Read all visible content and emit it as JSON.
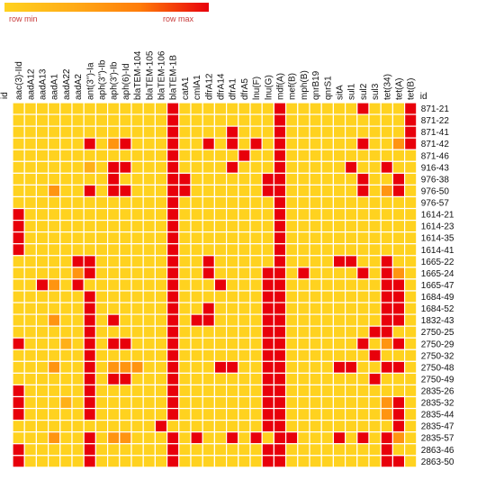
{
  "legend": {
    "min_label": "row min",
    "max_label": "row max",
    "colors": [
      "#ffd21f",
      "#ffac17",
      "#ff7b0a",
      "#e8000b"
    ]
  },
  "chart_data": {
    "type": "heatmap",
    "row_header": "id",
    "col_header_right": "id",
    "columns": [
      "aac(3)-IId",
      "aadA12",
      "aadA13",
      "aadA1",
      "aadA22",
      "aadA2",
      "ant(3'')-Ia",
      "aph(3'')-Ib",
      "aph(3')-Ib",
      "aph(6)-Id",
      "blaTEM-104",
      "blaTEM-105",
      "blaTEM-106",
      "blaTEM-1B",
      "catA1",
      "cmlA1",
      "dfrA12",
      "dfrA14",
      "dfrA1",
      "dfrA5",
      "lnu(F)",
      "lnu(G)",
      "mdf(A)",
      "mef(B)",
      "mph(B)",
      "qnrB19",
      "qnrS1",
      "sitA",
      "sul1",
      "sul2",
      "sul3",
      "tet(34)",
      "tet(A)",
      "tet(B)"
    ],
    "rows": [
      {
        "id": "871-21",
        "values": [
          0,
          0,
          0,
          0,
          0,
          0,
          0,
          0,
          0,
          0,
          0,
          0,
          0,
          1,
          0,
          0,
          0,
          0,
          0,
          0,
          0,
          0,
          1,
          0,
          0,
          0,
          0,
          0,
          0,
          1,
          0,
          0,
          0,
          1
        ]
      },
      {
        "id": "871-22",
        "values": [
          0,
          0,
          0,
          0,
          0,
          0,
          0,
          0,
          0,
          0,
          0,
          0,
          0,
          1,
          0,
          0,
          0,
          0,
          0,
          0,
          0,
          0,
          1,
          0,
          0,
          0,
          0,
          0,
          0,
          0,
          0,
          0,
          0,
          1
        ]
      },
      {
        "id": "871-41",
        "values": [
          0,
          0,
          0,
          0,
          0,
          0,
          0,
          0,
          0,
          0,
          0,
          0,
          0,
          1,
          0,
          0,
          0,
          0,
          1,
          0,
          0,
          0,
          1,
          0,
          0,
          0,
          0,
          0,
          0,
          0,
          0,
          0,
          0,
          1
        ]
      },
      {
        "id": "871-42",
        "values": [
          0,
          0,
          0,
          0,
          0,
          0,
          1,
          0,
          0.5,
          1,
          0,
          0,
          0,
          1,
          0,
          0,
          1,
          0,
          1,
          0,
          1,
          0,
          1,
          0,
          0,
          0,
          0,
          0,
          0,
          1,
          0,
          0,
          0.5,
          1
        ]
      },
      {
        "id": "871-46",
        "values": [
          0,
          0,
          0,
          0,
          0,
          0,
          0,
          0,
          0,
          0,
          0,
          0,
          0,
          1,
          0,
          0,
          0,
          0,
          0,
          1,
          0,
          0,
          1,
          0,
          0,
          0,
          0,
          0,
          0,
          0,
          0,
          0,
          0,
          0
        ]
      },
      {
        "id": "916-43",
        "values": [
          0,
          0,
          0,
          0,
          0,
          0,
          0.3,
          0,
          1,
          1,
          0,
          0,
          0,
          1,
          0,
          0,
          0,
          0,
          1,
          0,
          0,
          0,
          1,
          0,
          0,
          0,
          0,
          0,
          1,
          0,
          0,
          1,
          0,
          0
        ]
      },
      {
        "id": "976-38",
        "values": [
          0,
          0,
          0,
          0,
          0,
          0,
          0,
          0,
          1,
          0,
          0,
          0,
          0,
          1,
          1,
          0,
          0,
          0,
          0,
          0,
          0,
          1,
          1,
          0,
          0,
          0,
          0,
          0,
          0,
          1,
          0,
          0,
          1,
          0
        ]
      },
      {
        "id": "976-50",
        "values": [
          0,
          0,
          0,
          0.5,
          0,
          0,
          1,
          0,
          1,
          1,
          0,
          0,
          0,
          1,
          1,
          0,
          0,
          0,
          0,
          0,
          0,
          1,
          1,
          0,
          0,
          0,
          0,
          0,
          0,
          1,
          0,
          0.5,
          1,
          0
        ]
      },
      {
        "id": "976-57",
        "values": [
          0,
          0,
          0,
          0,
          0,
          0,
          0,
          0,
          0,
          0,
          0,
          0,
          0,
          1,
          0,
          0,
          0,
          0,
          0,
          0,
          0,
          0,
          1,
          0,
          0,
          0,
          0,
          0,
          0,
          0,
          0,
          0,
          0,
          0
        ]
      },
      {
        "id": "1614-21",
        "values": [
          1,
          0,
          0,
          0,
          0,
          0,
          0,
          0,
          0,
          0,
          0,
          0,
          0,
          1,
          0,
          0,
          0,
          0,
          0,
          0,
          0,
          0,
          1,
          0,
          0,
          0,
          0,
          0,
          0,
          0,
          0,
          0,
          0,
          0
        ]
      },
      {
        "id": "1614-23",
        "values": [
          1,
          0,
          0,
          0,
          0,
          0,
          0,
          0,
          0,
          0,
          0,
          0,
          0,
          1,
          0,
          0,
          0,
          0,
          0,
          0,
          0,
          0,
          1,
          0,
          0,
          0,
          0,
          0,
          0,
          0,
          0,
          0,
          0,
          0
        ]
      },
      {
        "id": "1614-35",
        "values": [
          1,
          0,
          0,
          0,
          0,
          0,
          0,
          0,
          0,
          0,
          0,
          0,
          0,
          1,
          0,
          0,
          0,
          0,
          0,
          0,
          0,
          0,
          1,
          0,
          0,
          0,
          0,
          0,
          0,
          0,
          0,
          0,
          0,
          0
        ]
      },
      {
        "id": "1614-41",
        "values": [
          1,
          0,
          0,
          0,
          0,
          0,
          0,
          0,
          0,
          0,
          0,
          0,
          0,
          1,
          0,
          0,
          0,
          0,
          0,
          0,
          0,
          0,
          1,
          0,
          0,
          0,
          0,
          0,
          0,
          0,
          0,
          0,
          0,
          0
        ]
      },
      {
        "id": "1665-22",
        "values": [
          0,
          0,
          0,
          0,
          0,
          1,
          1,
          0,
          0,
          0,
          0,
          0,
          0,
          1,
          0,
          0,
          1,
          0,
          0,
          0,
          0,
          0,
          1,
          0,
          0,
          0,
          0,
          1,
          1,
          0,
          0,
          1,
          0,
          0
        ]
      },
      {
        "id": "1665-24",
        "values": [
          0,
          0,
          0,
          0,
          0,
          0.5,
          1,
          0,
          0,
          0,
          0,
          0,
          0,
          1,
          0,
          0,
          1,
          0,
          0,
          0,
          0,
          1,
          1,
          0,
          1,
          0,
          0,
          0,
          0,
          1,
          0,
          1,
          0.5,
          0
        ]
      },
      {
        "id": "1665-47",
        "values": [
          0,
          0,
          1,
          0.5,
          0,
          1,
          0,
          0,
          0,
          0,
          0,
          0,
          0,
          1,
          0,
          0,
          0,
          1,
          0,
          0,
          0,
          1,
          1,
          0,
          0,
          0,
          0,
          0,
          0,
          0,
          0,
          1,
          1,
          0
        ]
      },
      {
        "id": "1684-49",
        "values": [
          0,
          0,
          0,
          0,
          0,
          0,
          1,
          0,
          0,
          0,
          0,
          0,
          0,
          1,
          0,
          0,
          0,
          0,
          0,
          0,
          0,
          1,
          1,
          0,
          0,
          0,
          0,
          0,
          0,
          0,
          0,
          1,
          1,
          0
        ]
      },
      {
        "id": "1684-52",
        "values": [
          0,
          0,
          0,
          0,
          0,
          0,
          1,
          0,
          0,
          0,
          0,
          0,
          0,
          1,
          0,
          0,
          1,
          0,
          0,
          0,
          0,
          1,
          1,
          0,
          0,
          0,
          0,
          0,
          0,
          0,
          0,
          1,
          1,
          0
        ]
      },
      {
        "id": "1832-43",
        "values": [
          0,
          0,
          0,
          0.5,
          0,
          0,
          1,
          0,
          1,
          0,
          0,
          0,
          0,
          1,
          0,
          1,
          1,
          0,
          0,
          0,
          0,
          1,
          1,
          0,
          0,
          0,
          0,
          0,
          0,
          0,
          0,
          1,
          1,
          0
        ]
      },
      {
        "id": "2750-25",
        "values": [
          0,
          0,
          0,
          0,
          0,
          0,
          1,
          0,
          0,
          0,
          0,
          0,
          0,
          1,
          0,
          0,
          0,
          0,
          0,
          0,
          0,
          1,
          1,
          0,
          0,
          0,
          0,
          0,
          0,
          0,
          1,
          1,
          0,
          0
        ]
      },
      {
        "id": "2750-29",
        "values": [
          1,
          0,
          0,
          0,
          0.3,
          0,
          1,
          0,
          1,
          1,
          0,
          0,
          0,
          1,
          0,
          0,
          0,
          0,
          0,
          0,
          0,
          1,
          1,
          0,
          0,
          0,
          0,
          0,
          0,
          1,
          0,
          0.5,
          1,
          0
        ]
      },
      {
        "id": "2750-32",
        "values": [
          0,
          0,
          0,
          0,
          0,
          0,
          1,
          0,
          0,
          0,
          0,
          0,
          0,
          1,
          0,
          0,
          0,
          0,
          0,
          0,
          0,
          1,
          1,
          0,
          0,
          0,
          0,
          0,
          0,
          0,
          1,
          0,
          0,
          0
        ]
      },
      {
        "id": "2750-48",
        "values": [
          0,
          0,
          0,
          0.5,
          0,
          0,
          1,
          0,
          0.5,
          0.5,
          0.5,
          0,
          0,
          1,
          0,
          0,
          0,
          1,
          1,
          0,
          0,
          1,
          1,
          0,
          0,
          0,
          0,
          1,
          1,
          0,
          0,
          1,
          1,
          0
        ]
      },
      {
        "id": "2750-49",
        "values": [
          0,
          0,
          0,
          0,
          0,
          0,
          1,
          0,
          1,
          1,
          0,
          0,
          0,
          1,
          0,
          0,
          0,
          0,
          0,
          0,
          0,
          1,
          1,
          0,
          0,
          0,
          0,
          0,
          0,
          0,
          1,
          0,
          0,
          0
        ]
      },
      {
        "id": "2835-26",
        "values": [
          1,
          0,
          0,
          0,
          0,
          0,
          1,
          0,
          0,
          0,
          0,
          0,
          0,
          1,
          0,
          0,
          0,
          0,
          0,
          0,
          0,
          1,
          1,
          0,
          0,
          0,
          0,
          0,
          0,
          0,
          0,
          0,
          0,
          0
        ]
      },
      {
        "id": "2835-32",
        "values": [
          1,
          0,
          0,
          0,
          0.3,
          0,
          1,
          0,
          0,
          0,
          0,
          0,
          0,
          1,
          0,
          0,
          0,
          0,
          0,
          0,
          0,
          1,
          1,
          0,
          0,
          0,
          0,
          0,
          0,
          0,
          0,
          0.5,
          1,
          0
        ]
      },
      {
        "id": "2835-44",
        "values": [
          1,
          0,
          0,
          0,
          0,
          0,
          1,
          0,
          0,
          0,
          0,
          0,
          0,
          1,
          0,
          0,
          0,
          0,
          0,
          0,
          0,
          1,
          1,
          0,
          0,
          0,
          0,
          0,
          0,
          0,
          0,
          0.5,
          1,
          0
        ]
      },
      {
        "id": "2835-47",
        "values": [
          0,
          0,
          0,
          0,
          0,
          0,
          0,
          0,
          0,
          0,
          0,
          0,
          1,
          0,
          0,
          0,
          0,
          0,
          0,
          0,
          0,
          1,
          1,
          0,
          0,
          0,
          0,
          0,
          0,
          0,
          0,
          0,
          1,
          0
        ]
      },
      {
        "id": "2835-57",
        "values": [
          0,
          0,
          0,
          0.5,
          0,
          0,
          1,
          0,
          0.5,
          0.5,
          0,
          0,
          0,
          1,
          0,
          1,
          0,
          0,
          1,
          0,
          1,
          0,
          1,
          1,
          0,
          0,
          0,
          1,
          0,
          1,
          0,
          1,
          0.5,
          0
        ]
      },
      {
        "id": "2863-46",
        "values": [
          1,
          0,
          0,
          0,
          0,
          0,
          1,
          0,
          0,
          0,
          0,
          0,
          0,
          1,
          0,
          0,
          0,
          0,
          0,
          0,
          0,
          1,
          1,
          0,
          0,
          0,
          0,
          0,
          0,
          0,
          0,
          1,
          0,
          0
        ]
      },
      {
        "id": "2863-50",
        "values": [
          1,
          0,
          0,
          0,
          0,
          0,
          1,
          0,
          0,
          0,
          0,
          0,
          0,
          1,
          0,
          0,
          0,
          0,
          0,
          0,
          0,
          1,
          1,
          0,
          0,
          0,
          0,
          0,
          0,
          0,
          0,
          1,
          1,
          0
        ]
      }
    ]
  }
}
